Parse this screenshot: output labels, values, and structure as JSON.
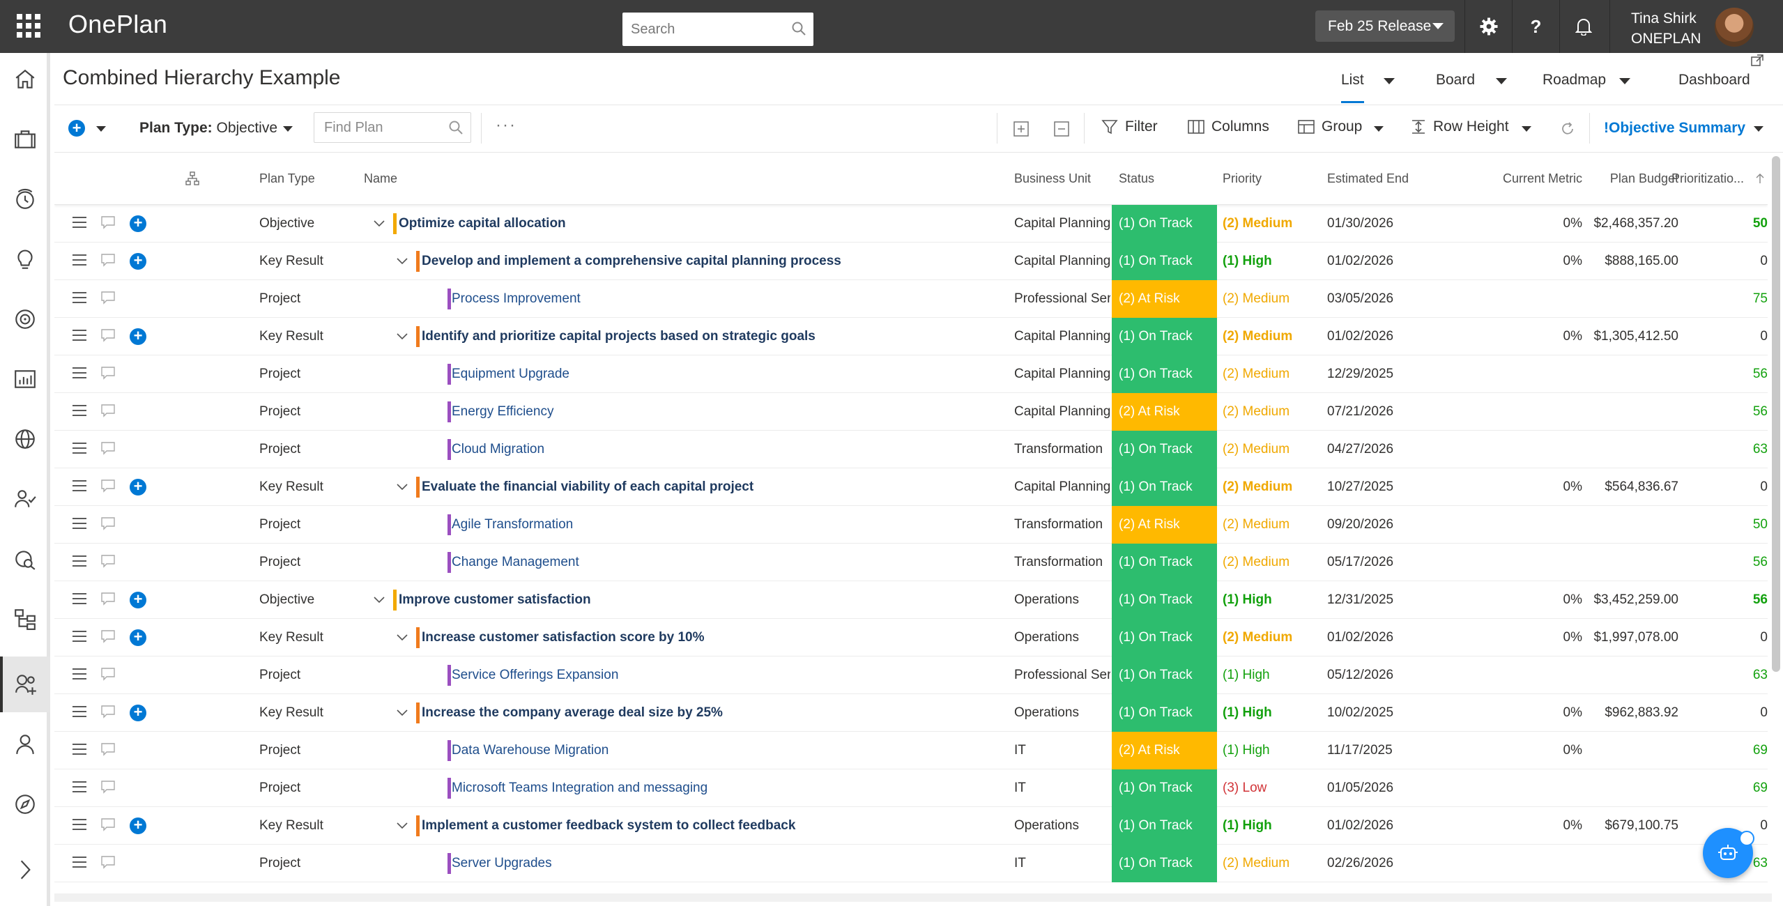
{
  "app": {
    "name": "OnePlan"
  },
  "topbar": {
    "search_placeholder": "Search",
    "release": "Feb 25 Release",
    "user_name": "Tina Shirk",
    "user_org": "ONEPLAN",
    "icons": [
      "gear-icon",
      "help-icon",
      "bell-icon"
    ]
  },
  "nav": {
    "icons": [
      "home-icon",
      "briefcase-icon",
      "clock-icon",
      "lightbulb-icon",
      "target-icon",
      "chart-icon",
      "globe-icon",
      "people-check-icon",
      "money-search-icon",
      "hierarchy-icon",
      "goals-icon",
      "person-icon",
      "compass-icon",
      "expand-icon"
    ],
    "active": "goals-icon"
  },
  "page": {
    "title": "Combined Hierarchy Example",
    "views": [
      "List",
      "Board",
      "Roadmap",
      "Dashboard"
    ],
    "active_view": "List"
  },
  "toolbar": {
    "plan_type_label": "Plan Type:",
    "plan_type_value": "Objective",
    "find_placeholder": "Find Plan",
    "more": "···",
    "filter": "Filter",
    "columns": "Columns",
    "group": "Group",
    "row_height": "Row Height",
    "summary": "!Objective Summary"
  },
  "grid": {
    "columns": [
      "Plan Type",
      "Name",
      "Business Unit",
      "Status",
      "Priority",
      "Estimated End",
      "Current Metric",
      "Plan Budget",
      "Prioritizatio..."
    ],
    "rows": [
      {
        "type": "Objective",
        "name": "Optimize capital allocation",
        "level": 0,
        "bu": "Capital Planning",
        "status": "(1) On Track",
        "priority": "(2) Medium",
        "end": "01/30/2026",
        "metric": "0%",
        "budget": "$2,468,357.20",
        "score": "50"
      },
      {
        "type": "Key Result",
        "name": "Develop and implement a comprehensive capital planning process",
        "level": 1,
        "bu": "Capital Planning",
        "status": "(1) On Track",
        "priority": "(1) High",
        "end": "01/02/2026",
        "metric": "0%",
        "budget": "$888,165.00",
        "score": "0"
      },
      {
        "type": "Project",
        "name": "Process Improvement",
        "level": 2,
        "bu": "Professional Services",
        "status": "(2) At Risk",
        "priority": "(2) Medium",
        "end": "03/05/2026",
        "metric": "",
        "budget": "",
        "score": "75"
      },
      {
        "type": "Key Result",
        "name": "Identify and prioritize capital projects based on strategic goals",
        "level": 1,
        "bu": "Capital Planning",
        "status": "(1) On Track",
        "priority": "(2) Medium",
        "end": "01/02/2026",
        "metric": "0%",
        "budget": "$1,305,412.50",
        "score": "0"
      },
      {
        "type": "Project",
        "name": "Equipment Upgrade",
        "level": 2,
        "bu": "Capital Planning",
        "status": "(1) On Track",
        "priority": "(2) Medium",
        "end": "12/29/2025",
        "metric": "",
        "budget": "",
        "score": "56"
      },
      {
        "type": "Project",
        "name": "Energy Efficiency",
        "level": 2,
        "bu": "Capital Planning",
        "status": "(2) At Risk",
        "priority": "(2) Medium",
        "end": "07/21/2026",
        "metric": "",
        "budget": "",
        "score": "56"
      },
      {
        "type": "Project",
        "name": "Cloud Migration",
        "level": 2,
        "bu": "Transformation",
        "status": "(1) On Track",
        "priority": "(2) Medium",
        "end": "04/27/2026",
        "metric": "",
        "budget": "",
        "score": "63"
      },
      {
        "type": "Key Result",
        "name": "Evaluate the financial viability of each capital project",
        "level": 1,
        "bu": "Capital Planning",
        "status": "(1) On Track",
        "priority": "(2) Medium",
        "end": "10/27/2025",
        "metric": "0%",
        "budget": "$564,836.67",
        "score": "0"
      },
      {
        "type": "Project",
        "name": "Agile Transformation",
        "level": 2,
        "bu": "Transformation",
        "status": "(2) At Risk",
        "priority": "(2) Medium",
        "end": "09/20/2026",
        "metric": "",
        "budget": "",
        "score": "50"
      },
      {
        "type": "Project",
        "name": "Change Management",
        "level": 2,
        "bu": "Transformation",
        "status": "(1) On Track",
        "priority": "(2) Medium",
        "end": "05/17/2026",
        "metric": "",
        "budget": "",
        "score": "56"
      },
      {
        "type": "Objective",
        "name": "Improve customer satisfaction",
        "level": 0,
        "bu": "Operations",
        "status": "(1) On Track",
        "priority": "(1) High",
        "end": "12/31/2025",
        "metric": "0%",
        "budget": "$3,452,259.00",
        "score": "56"
      },
      {
        "type": "Key Result",
        "name": "Increase customer satisfaction score by 10%",
        "level": 1,
        "bu": "Operations",
        "status": "(1) On Track",
        "priority": "(2) Medium",
        "end": "01/02/2026",
        "metric": "0%",
        "budget": "$1,997,078.00",
        "score": "0"
      },
      {
        "type": "Project",
        "name": "Service Offerings Expansion",
        "level": 2,
        "bu": "Professional Services",
        "status": "(1) On Track",
        "priority": "(1) High",
        "end": "05/12/2026",
        "metric": "",
        "budget": "",
        "score": "63"
      },
      {
        "type": "Key Result",
        "name": "Increase the company average deal size by 25%",
        "level": 1,
        "bu": "Operations",
        "status": "(1) On Track",
        "priority": "(1) High",
        "end": "10/02/2025",
        "metric": "0%",
        "budget": "$962,883.92",
        "score": "0"
      },
      {
        "type": "Project",
        "name": "Data Warehouse Migration",
        "level": 2,
        "bu": "IT",
        "status": "(2) At Risk",
        "priority": "(1) High",
        "end": "11/17/2025",
        "metric": "0%",
        "budget": "",
        "score": "69"
      },
      {
        "type": "Project",
        "name": "Microsoft Teams Integration and messaging",
        "level": 2,
        "bu": "IT",
        "status": "(1) On Track",
        "priority": "(3) Low",
        "end": "01/05/2026",
        "metric": "",
        "budget": "",
        "score": "69"
      },
      {
        "type": "Key Result",
        "name": "Implement a customer feedback system to collect feedback",
        "level": 1,
        "bu": "Operations",
        "status": "(1) On Track",
        "priority": "(1) High",
        "end": "01/02/2026",
        "metric": "0%",
        "budget": "$679,100.75",
        "score": "0"
      },
      {
        "type": "Project",
        "name": "Server Upgrades",
        "level": 2,
        "bu": "IT",
        "status": "(1) On Track",
        "priority": "(2) Medium",
        "end": "02/26/2026",
        "metric": "",
        "budget": "",
        "score": "63"
      }
    ]
  },
  "colors": {
    "on_track": "#2dbd6e",
    "at_risk": "#ffb900",
    "objective_bar": "#f2a900",
    "key_result_bar": "#f07b1d",
    "project_bar": "#9b4fc0",
    "accent": "#0078d4"
  }
}
